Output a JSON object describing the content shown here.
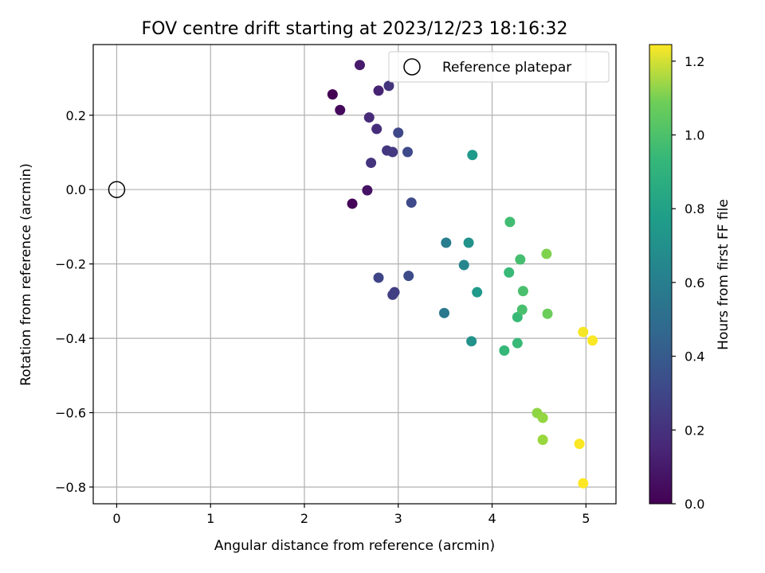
{
  "chart_data": {
    "type": "scatter",
    "title": "FOV centre drift starting at 2023/12/23 18:16:32",
    "xlabel": "Angular distance from reference (arcmin)",
    "ylabel": "Rotation from reference (arcmin)",
    "xlim": [
      -0.25,
      5.32
    ],
    "ylim": [
      -0.845,
      0.39
    ],
    "xticks": [
      0,
      1,
      2,
      3,
      4,
      5
    ],
    "yticks": [
      0.2,
      0.0,
      -0.2,
      -0.4,
      -0.6,
      -0.8
    ],
    "xtick_labels": [
      "0",
      "1",
      "2",
      "3",
      "4",
      "5"
    ],
    "ytick_labels": [
      "0.2",
      "0.0",
      "−0.2",
      "−0.4",
      "−0.6",
      "−0.8"
    ],
    "grid": true,
    "legend": {
      "placement": "top-right",
      "entries": [
        "Reference platepar"
      ]
    },
    "reference_point": {
      "x": 0,
      "y": 0,
      "label": "Reference platepar"
    },
    "colorbar": {
      "label": "Hours from first FF file",
      "colormap": "viridis",
      "range": [
        0.0,
        1.245
      ],
      "ticks": [
        0.0,
        0.2,
        0.4,
        0.6,
        0.8,
        1.0,
        1.2
      ],
      "tick_labels": [
        "0.0",
        "0.2",
        "0.4",
        "0.6",
        "0.8",
        "1.0",
        "1.2"
      ]
    },
    "points": [
      {
        "x": 2.3,
        "y": 0.256,
        "t": 0.0
      },
      {
        "x": 2.51,
        "y": -0.038,
        "t": 0.01
      },
      {
        "x": 2.38,
        "y": 0.214,
        "t": 0.03
      },
      {
        "x": 2.67,
        "y": -0.002,
        "t": 0.06
      },
      {
        "x": 2.59,
        "y": 0.335,
        "t": 0.09
      },
      {
        "x": 2.79,
        "y": 0.266,
        "t": 0.12
      },
      {
        "x": 2.69,
        "y": 0.194,
        "t": 0.15
      },
      {
        "x": 2.77,
        "y": 0.163,
        "t": 0.16
      },
      {
        "x": 2.9,
        "y": 0.279,
        "t": 0.19
      },
      {
        "x": 2.71,
        "y": 0.072,
        "t": 0.19
      },
      {
        "x": 2.88,
        "y": 0.105,
        "t": 0.2
      },
      {
        "x": 2.94,
        "y": 0.101,
        "t": 0.21
      },
      {
        "x": 2.94,
        "y": -0.283,
        "t": 0.23
      },
      {
        "x": 2.96,
        "y": -0.276,
        "t": 0.23
      },
      {
        "x": 2.79,
        "y": -0.237,
        "t": 0.26
      },
      {
        "x": 3.0,
        "y": 0.153,
        "t": 0.27
      },
      {
        "x": 3.1,
        "y": 0.101,
        "t": 0.28
      },
      {
        "x": 3.14,
        "y": -0.035,
        "t": 0.28
      },
      {
        "x": 3.11,
        "y": -0.232,
        "t": 0.29
      },
      {
        "x": 3.49,
        "y": -0.332,
        "t": 0.5
      },
      {
        "x": 3.51,
        "y": -0.143,
        "t": 0.53
      },
      {
        "x": 3.7,
        "y": -0.203,
        "t": 0.58
      },
      {
        "x": 3.75,
        "y": -0.143,
        "t": 0.63
      },
      {
        "x": 3.78,
        "y": -0.408,
        "t": 0.63
      },
      {
        "x": 3.79,
        "y": 0.093,
        "t": 0.67
      },
      {
        "x": 3.84,
        "y": -0.276,
        "t": 0.67
      },
      {
        "x": 4.13,
        "y": -0.433,
        "t": 0.83
      },
      {
        "x": 4.18,
        "y": -0.223,
        "t": 0.84
      },
      {
        "x": 4.19,
        "y": -0.087,
        "t": 0.86
      },
      {
        "x": 4.27,
        "y": -0.413,
        "t": 0.84
      },
      {
        "x": 4.27,
        "y": -0.343,
        "t": 0.84
      },
      {
        "x": 4.3,
        "y": -0.188,
        "t": 0.87
      },
      {
        "x": 4.32,
        "y": -0.323,
        "t": 0.88
      },
      {
        "x": 4.33,
        "y": -0.273,
        "t": 0.88
      },
      {
        "x": 4.59,
        "y": -0.334,
        "t": 0.96
      },
      {
        "x": 4.58,
        "y": -0.173,
        "t": 1.0
      },
      {
        "x": 4.48,
        "y": -0.601,
        "t": 1.03
      },
      {
        "x": 4.54,
        "y": -0.614,
        "t": 1.04
      },
      {
        "x": 4.54,
        "y": -0.673,
        "t": 1.05
      },
      {
        "x": 4.97,
        "y": -0.383,
        "t": 1.23
      },
      {
        "x": 5.07,
        "y": -0.406,
        "t": 1.24
      },
      {
        "x": 4.93,
        "y": -0.684,
        "t": 1.24
      },
      {
        "x": 4.97,
        "y": -0.79,
        "t": 1.245
      }
    ]
  }
}
